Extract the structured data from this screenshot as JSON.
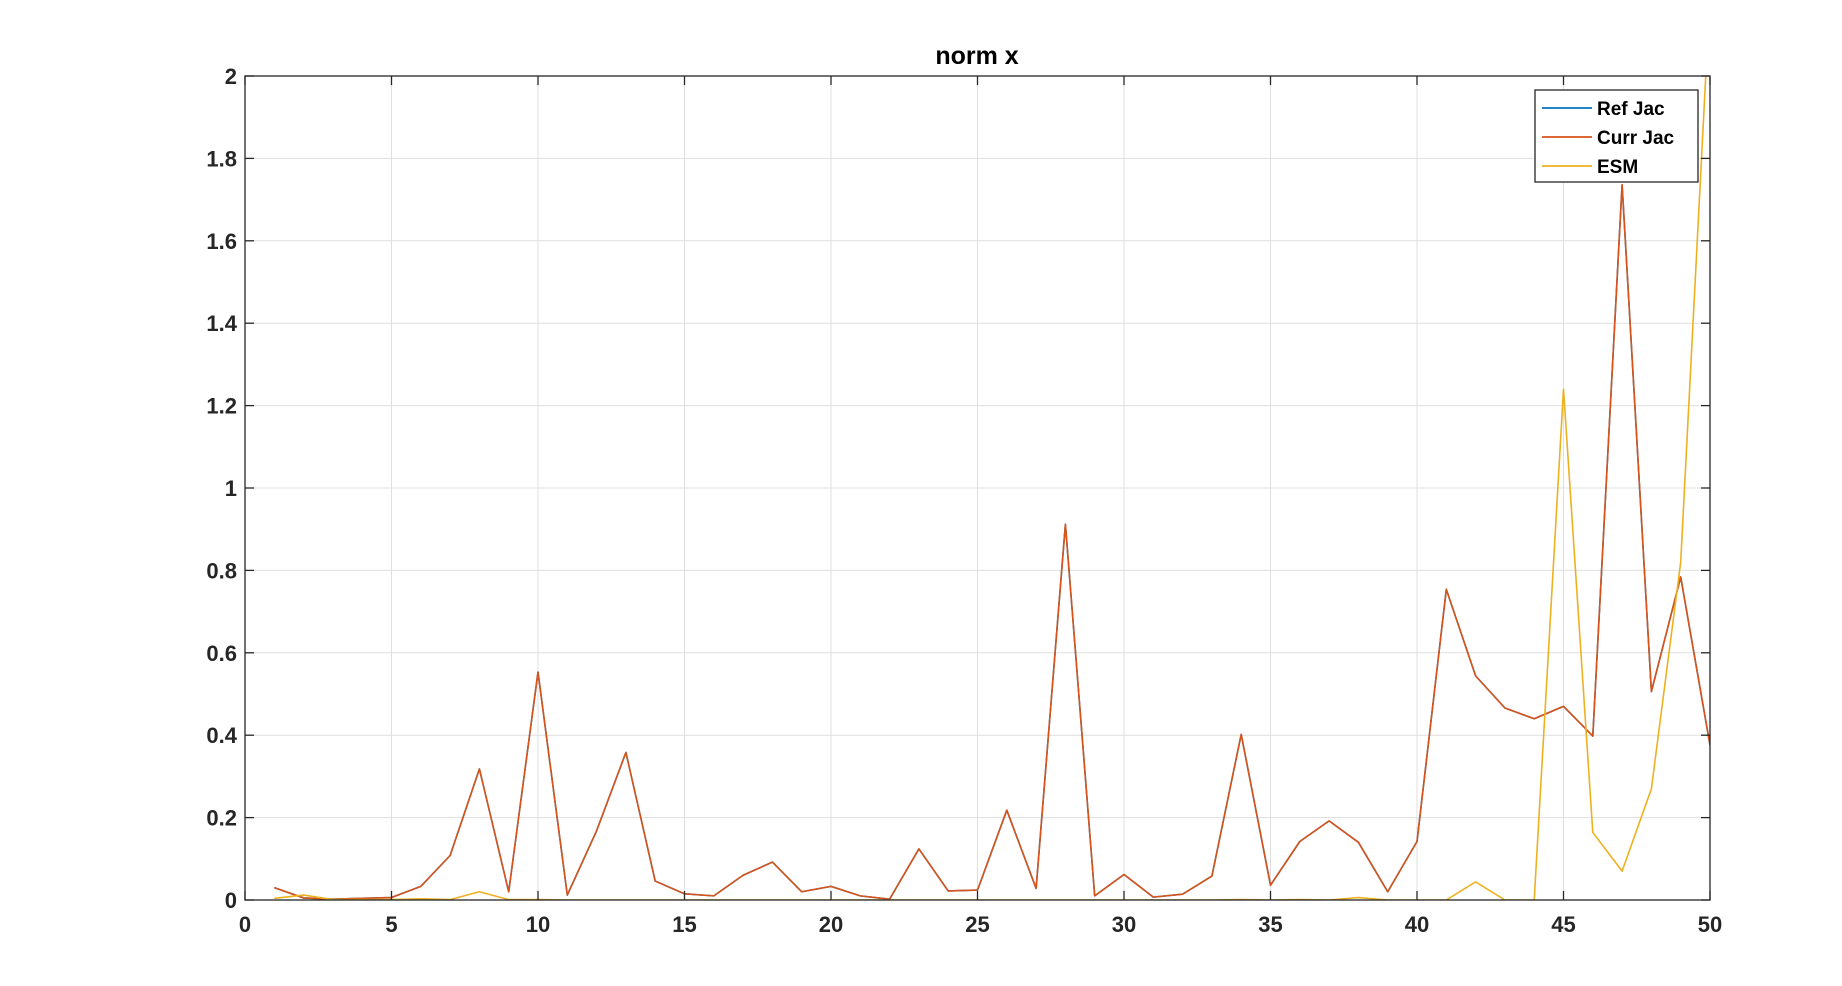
{
  "chart_data": {
    "type": "line",
    "title": "norm x",
    "xlabel": "",
    "ylabel": "",
    "xlim": [
      0,
      50
    ],
    "ylim": [
      0,
      2
    ],
    "x_ticks": [
      0,
      5,
      10,
      15,
      20,
      25,
      30,
      35,
      40,
      45,
      50
    ],
    "y_ticks": [
      0,
      0.2,
      0.4,
      0.6,
      0.8,
      1,
      1.2,
      1.4,
      1.6,
      1.8,
      2
    ],
    "x_tick_labels": [
      "0",
      "5",
      "10",
      "15",
      "20",
      "25",
      "30",
      "35",
      "40",
      "45",
      "50"
    ],
    "y_tick_labels": [
      "0",
      "0.2",
      "0.4",
      "0.6",
      "0.8",
      "1",
      "1.2",
      "1.4",
      "1.6",
      "1.8",
      "2"
    ],
    "grid": true,
    "legend_position": "top-right",
    "x": [
      1,
      2,
      3,
      4,
      5,
      6,
      7,
      8,
      9,
      10,
      11,
      12,
      13,
      14,
      15,
      16,
      17,
      18,
      19,
      20,
      21,
      22,
      23,
      24,
      25,
      26,
      27,
      28,
      29,
      30,
      31,
      32,
      33,
      34,
      35,
      36,
      37,
      38,
      39,
      40,
      41,
      42,
      43,
      44,
      45,
      46,
      47,
      48,
      49,
      50
    ],
    "series": [
      {
        "name": "Ref Jac",
        "color": "#0072BD",
        "values": [
          0.03,
          0.005,
          0.002,
          0.004,
          0.006,
          0.033,
          0.108,
          0.318,
          0.02,
          0.553,
          0.012,
          0.168,
          0.358,
          0.046,
          0.015,
          0.01,
          0.06,
          0.092,
          0.02,
          0.033,
          0.01,
          0.002,
          0.124,
          0.022,
          0.024,
          0.218,
          0.028,
          0.912,
          0.01,
          0.062,
          0.007,
          0.014,
          0.058,
          0.402,
          0.036,
          0.142,
          0.192,
          0.14,
          0.02,
          0.142,
          0.754,
          0.544,
          0.466,
          0.44,
          0.47,
          0.398,
          1.736,
          0.506,
          0.784,
          0.376
        ]
      },
      {
        "name": "Curr Jac",
        "color": "#D95319",
        "values": [
          0.03,
          0.005,
          0.002,
          0.004,
          0.006,
          0.033,
          0.108,
          0.318,
          0.02,
          0.553,
          0.012,
          0.168,
          0.358,
          0.046,
          0.015,
          0.01,
          0.06,
          0.092,
          0.02,
          0.033,
          0.01,
          0.002,
          0.124,
          0.022,
          0.024,
          0.218,
          0.028,
          0.912,
          0.01,
          0.062,
          0.007,
          0.014,
          0.058,
          0.402,
          0.036,
          0.142,
          0.192,
          0.14,
          0.02,
          0.142,
          0.754,
          0.544,
          0.466,
          0.44,
          0.47,
          0.398,
          1.736,
          0.506,
          0.784,
          0.376
        ]
      },
      {
        "name": "ESM",
        "color": "#EDB120",
        "values": [
          0.004,
          0.012,
          0.001,
          0.001,
          0.001,
          0.003,
          0.001,
          0.02,
          0.001,
          0.001,
          0.0,
          0.0,
          0.0,
          0.0,
          0.0,
          0.0,
          0.0,
          0.0,
          0.0,
          0.0,
          0.0,
          0.0,
          0.0,
          0.0,
          0.0,
          0.0,
          0.0,
          0.0,
          0.0,
          0.0,
          0.0,
          0.0,
          0.0,
          0.001,
          0.0,
          0.001,
          0.0,
          0.006,
          0.0,
          0.0,
          0.0,
          0.044,
          0.0,
          0.0,
          1.24,
          0.164,
          0.07,
          0.27,
          0.82,
          2.2
        ]
      }
    ]
  }
}
